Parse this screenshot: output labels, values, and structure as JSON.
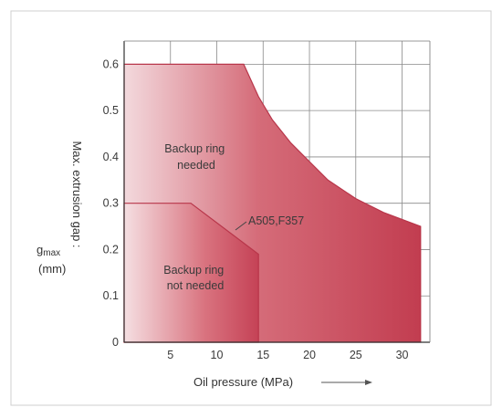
{
  "chart_data": {
    "type": "area",
    "title": "",
    "xlabel": "Oil pressure (MPa)",
    "ylabel_main": "Max. extrusion gap :",
    "ylabel_symbol": "g",
    "ylabel_subscript": "max",
    "ylabel_unit": "(mm)",
    "xlim": [
      0,
      33
    ],
    "ylim": [
      0,
      0.65
    ],
    "x_ticks": [
      5,
      10,
      15,
      20,
      25,
      30
    ],
    "y_ticks": [
      0,
      0.1,
      0.2,
      0.3,
      0.4,
      0.5,
      0.6
    ],
    "y_tick_labels": [
      "0",
      "0.1",
      "0.2",
      "0.3",
      "0.4",
      "0.5",
      "0.6"
    ],
    "grid": true,
    "series": [
      {
        "label": "Backup ring needed",
        "region": "upper",
        "boundary": [
          {
            "x": 0,
            "y": 0.6
          },
          {
            "x": 12.9,
            "y": 0.6
          },
          {
            "x": 14.5,
            "y": 0.53
          },
          {
            "x": 16,
            "y": 0.48
          },
          {
            "x": 18,
            "y": 0.43
          },
          {
            "x": 20,
            "y": 0.39
          },
          {
            "x": 22,
            "y": 0.35
          },
          {
            "x": 25,
            "y": 0.31
          },
          {
            "x": 28,
            "y": 0.28
          },
          {
            "x": 32,
            "y": 0.25
          }
        ]
      },
      {
        "label": "Backup ring not needed",
        "region": "lower",
        "boundary": [
          {
            "x": 0,
            "y": 0.3
          },
          {
            "x": 7.2,
            "y": 0.3
          },
          {
            "x": 14.5,
            "y": 0.19
          },
          {
            "x": 14.5,
            "y": 0
          }
        ]
      }
    ],
    "annotations": [
      {
        "text": "A505,F357",
        "x": 19.5,
        "y": 0.245
      }
    ]
  }
}
